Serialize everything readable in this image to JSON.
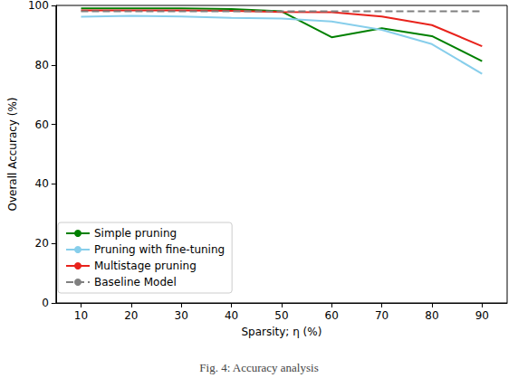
{
  "chart_data": {
    "type": "line",
    "title": "Fig. 4: Accuracy analysis",
    "x_label": "Sparsity; η (%)",
    "y_label": "Overall Accuracy (%)",
    "xlim": [
      5,
      95
    ],
    "xticks": [
      10,
      20,
      30,
      40,
      50,
      60,
      70,
      80,
      90
    ],
    "ylim": [
      0,
      100
    ],
    "yticks": [
      0,
      20,
      40,
      60,
      80,
      100
    ],
    "grid": false,
    "legend": "lower left",
    "x": [
      10,
      20,
      30,
      40,
      50,
      60,
      70,
      80,
      90
    ],
    "series": [
      {
        "name": "Simple pruning",
        "color": "#008000",
        "line_style": "solid",
        "values": [
          99.0,
          99.0,
          99.0,
          98.8,
          98.0,
          89.3,
          92.3,
          89.7,
          81.3
        ]
      },
      {
        "name": "Pruning with fine-tuning",
        "color": "#87ceeb",
        "line_style": "solid",
        "values": [
          96.2,
          96.5,
          96.3,
          95.8,
          95.6,
          94.6,
          91.8,
          87.0,
          77.0
        ]
      },
      {
        "name": "Multistage pruning",
        "color": "#e8231c",
        "line_style": "solid",
        "values": [
          98.3,
          98.3,
          98.3,
          98.2,
          97.8,
          97.7,
          96.3,
          93.4,
          86.3
        ]
      },
      {
        "name": "Baseline Model",
        "color": "#808080",
        "line_style": "dashed",
        "values": [
          98.0,
          98.0,
          98.0,
          98.0,
          98.0,
          98.0,
          98.0,
          98.0,
          98.0
        ]
      }
    ]
  }
}
